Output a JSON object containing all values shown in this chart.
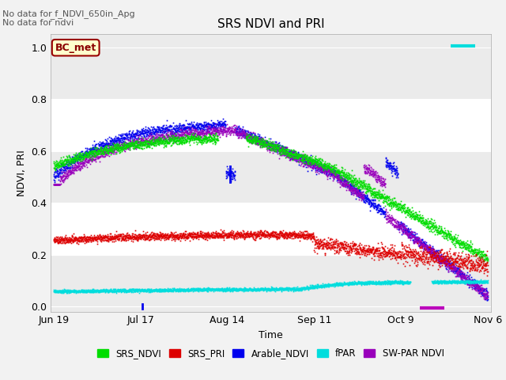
{
  "title": "SRS NDVI and PRI",
  "ylabel": "NDVI, PRI",
  "xlabel": "Time",
  "text_line1": "No data for f_NDVI_650in_Apg",
  "text_line2": "No data for ̅ndvi",
  "bc_met_label": "BC_met",
  "ylim": [
    -0.02,
    1.05
  ],
  "xlim_days": [
    -1,
    141
  ],
  "x_ticks_labels": [
    "Jun 19",
    "Jul 17",
    "Aug 14",
    "Sep 11",
    "Oct 9",
    "Nov 6"
  ],
  "x_ticks_days": [
    0,
    28,
    56,
    84,
    112,
    140
  ],
  "legend_entries": [
    {
      "label": "SRS_NDVI",
      "color": "#00dd00"
    },
    {
      "label": "SRS_PRI",
      "color": "#dd0000"
    },
    {
      "label": "Arable_NDVI",
      "color": "#0000ee"
    },
    {
      "label": "fPAR",
      "color": "#00dddd"
    },
    {
      "label": "SW-PAR NDVI",
      "color": "#9900bb"
    }
  ],
  "plot_bg_color": "#ebebeb",
  "fig_bg_color": "#f2f2f2",
  "grid_color": "#ffffff",
  "figsize": [
    6.4,
    4.8
  ],
  "dpi": 100
}
